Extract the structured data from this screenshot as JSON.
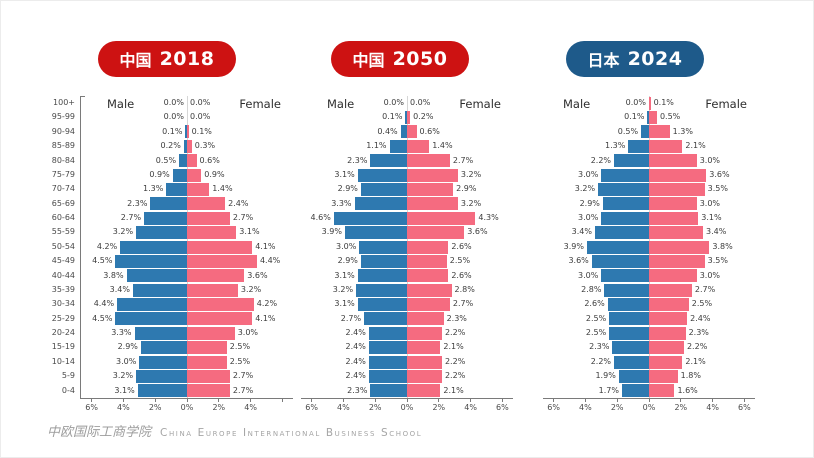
{
  "colors": {
    "male": "#2E79B0",
    "female": "#F56B80",
    "badge_red": "#CD1212",
    "badge_blue": "#1E5A8A",
    "axis": "#7A7A7A",
    "label_text": "#3C3C3C",
    "footer_text": "#A5A5A5"
  },
  "footer": {
    "logo_cn": "中欧国际工商学院",
    "logo_en": "China Europe International Business School"
  },
  "age_groups": [
    "100+",
    "95-99",
    "90-94",
    "85-89",
    "80-84",
    "75-79",
    "70-74",
    "65-69",
    "60-64",
    "55-59",
    "50-54",
    "45-49",
    "40-44",
    "35-39",
    "30-34",
    "25-29",
    "20-24",
    "15-19",
    "10-14",
    "5-9",
    "0-4"
  ],
  "chart_data": [
    {
      "type": "bar",
      "subtype": "population_pyramid",
      "title": "中国 2018",
      "badge": {
        "region": "中国",
        "year": "2018",
        "color": "#CD1212"
      },
      "male_label": "Male",
      "female_label": "Female",
      "x_unit": "%",
      "xlim": [
        -6.6,
        6.6
      ],
      "show_age_axis": true,
      "categories": [
        "100+",
        "95-99",
        "90-94",
        "85-89",
        "80-84",
        "75-79",
        "70-74",
        "65-69",
        "60-64",
        "55-59",
        "50-54",
        "45-49",
        "40-44",
        "35-39",
        "30-34",
        "25-29",
        "20-24",
        "15-19",
        "10-14",
        "5-9",
        "0-4"
      ],
      "series": [
        {
          "name": "Male",
          "values": [
            0.0,
            0.0,
            0.1,
            0.2,
            0.5,
            0.9,
            1.3,
            2.3,
            2.7,
            3.2,
            4.2,
            4.5,
            3.8,
            3.4,
            4.4,
            4.5,
            3.3,
            2.9,
            3.0,
            3.2,
            3.1
          ]
        },
        {
          "name": "Female",
          "values": [
            0.0,
            0.0,
            0.1,
            0.3,
            0.6,
            0.9,
            1.4,
            2.4,
            2.7,
            3.1,
            4.1,
            4.4,
            3.6,
            3.2,
            4.2,
            4.1,
            3.0,
            2.5,
            2.5,
            2.7,
            2.7
          ]
        }
      ],
      "x_ticks": [
        {
          "pos": -6,
          "label": "6%"
        },
        {
          "pos": -4,
          "label": "4%"
        },
        {
          "pos": -2,
          "label": "2%"
        },
        {
          "pos": 0,
          "label": "0%"
        },
        {
          "pos": 2,
          "label": "2%"
        },
        {
          "pos": 4,
          "label": "4%"
        },
        {
          "pos": 6,
          "label": ""
        }
      ]
    },
    {
      "type": "bar",
      "subtype": "population_pyramid",
      "title": "中国 2050",
      "badge": {
        "region": "中国",
        "year": "2050",
        "color": "#CD1212"
      },
      "male_label": "Male",
      "female_label": "Female",
      "x_unit": "%",
      "xlim": [
        -6.6,
        6.6
      ],
      "show_age_axis": false,
      "categories": [
        "100+",
        "95-99",
        "90-94",
        "85-89",
        "80-84",
        "75-79",
        "70-74",
        "65-69",
        "60-64",
        "55-59",
        "50-54",
        "45-49",
        "40-44",
        "35-39",
        "30-34",
        "25-29",
        "20-24",
        "15-19",
        "10-14",
        "5-9",
        "0-4"
      ],
      "series": [
        {
          "name": "Male",
          "values": [
            0.0,
            0.1,
            0.4,
            1.1,
            2.3,
            3.1,
            2.9,
            3.3,
            4.6,
            3.9,
            3.0,
            2.9,
            3.1,
            3.2,
            3.1,
            2.7,
            2.4,
            2.4,
            2.4,
            2.4,
            2.3
          ]
        },
        {
          "name": "Female",
          "values": [
            0.0,
            0.2,
            0.6,
            1.4,
            2.7,
            3.2,
            2.9,
            3.2,
            4.3,
            3.6,
            2.6,
            2.5,
            2.6,
            2.8,
            2.7,
            2.3,
            2.2,
            2.1,
            2.2,
            2.2,
            2.1
          ]
        }
      ],
      "x_ticks": [
        {
          "pos": -6,
          "label": "6%"
        },
        {
          "pos": -4,
          "label": "4%"
        },
        {
          "pos": -2,
          "label": "2%"
        },
        {
          "pos": 0,
          "label": "0%"
        },
        {
          "pos": 2,
          "label": "2%"
        },
        {
          "pos": 4,
          "label": "4%"
        },
        {
          "pos": 6,
          "label": "6%"
        }
      ]
    },
    {
      "type": "bar",
      "subtype": "population_pyramid",
      "title": "日本 2024",
      "badge": {
        "region": "日本",
        "year": "2024",
        "color": "#1E5A8A"
      },
      "male_label": "Male",
      "female_label": "Female",
      "x_unit": "%",
      "xlim": [
        -6.6,
        6.6
      ],
      "show_age_axis": false,
      "categories": [
        "100+",
        "95-99",
        "90-94",
        "85-89",
        "80-84",
        "75-79",
        "70-74",
        "65-69",
        "60-64",
        "55-59",
        "50-54",
        "45-49",
        "40-44",
        "35-39",
        "30-34",
        "25-29",
        "20-24",
        "15-19",
        "10-14",
        "5-9",
        "0-4"
      ],
      "series": [
        {
          "name": "Male",
          "values": [
            0.0,
            0.1,
            0.5,
            1.3,
            2.2,
            3.0,
            3.2,
            2.9,
            3.0,
            3.4,
            3.9,
            3.6,
            3.0,
            2.8,
            2.6,
            2.5,
            2.5,
            2.3,
            2.2,
            1.9,
            1.7
          ]
        },
        {
          "name": "Female",
          "values": [
            0.1,
            0.5,
            1.3,
            2.1,
            3.0,
            3.6,
            3.5,
            3.0,
            3.1,
            3.4,
            3.8,
            3.5,
            3.0,
            2.7,
            2.5,
            2.4,
            2.3,
            2.2,
            2.1,
            1.8,
            1.6
          ]
        }
      ],
      "x_ticks": [
        {
          "pos": -6,
          "label": "6%"
        },
        {
          "pos": -4,
          "label": "4%"
        },
        {
          "pos": -2,
          "label": "2%"
        },
        {
          "pos": 0,
          "label": "0%"
        },
        {
          "pos": 2,
          "label": "2%"
        },
        {
          "pos": 4,
          "label": "4%"
        },
        {
          "pos": 6,
          "label": "6%"
        }
      ]
    }
  ]
}
